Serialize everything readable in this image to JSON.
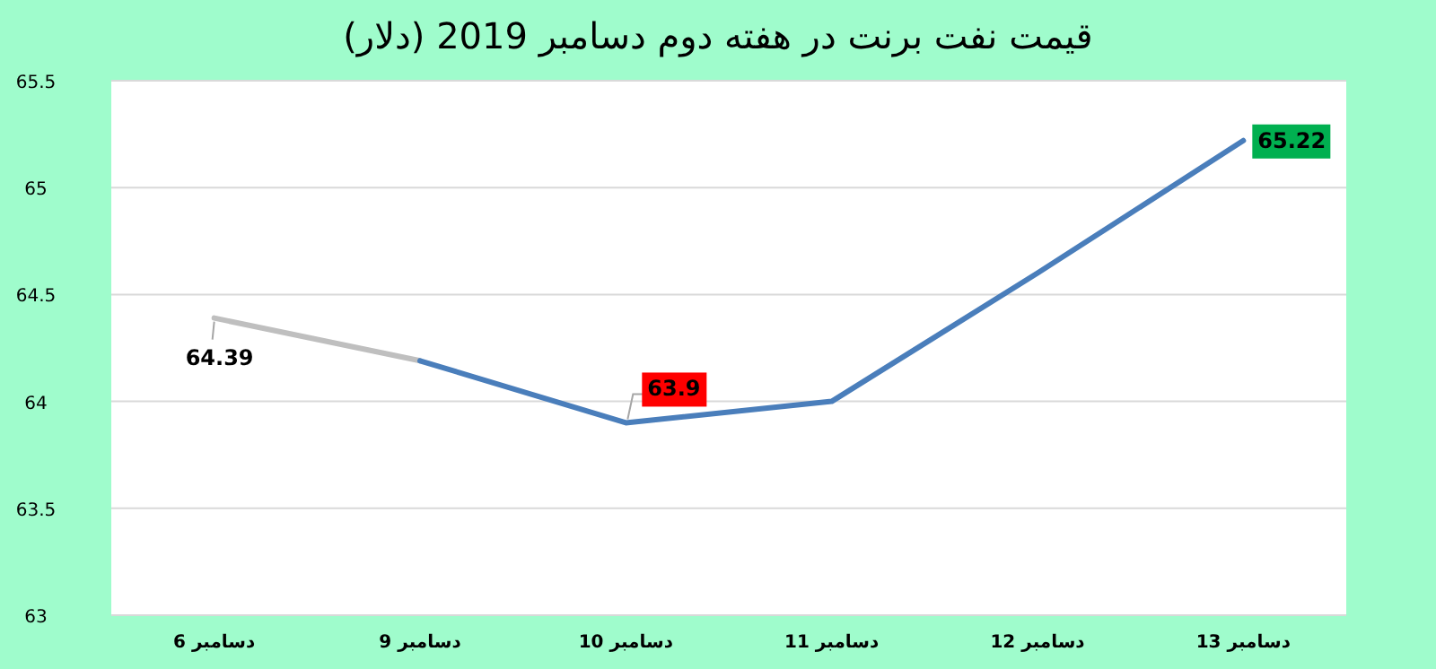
{
  "chart_data": {
    "type": "line",
    "title": "قیمت نفت برنت در هفته دوم دسامبر 2019 (دلار)",
    "categories": [
      "6 دسامبر",
      "9 دسامبر",
      "10 دسامبر",
      "11 دسامبر",
      "12 دسامبر",
      "13 دسامبر"
    ],
    "series": [
      {
        "color": "#bfbfbf",
        "values": [
          64.39,
          64.19,
          null,
          null,
          null,
          null
        ],
        "value_labels": [
          "64.39",
          null,
          null,
          null,
          null,
          null
        ]
      },
      {
        "color": "#4a7ebb",
        "values": [
          null,
          64.19,
          63.9,
          64.0,
          64.6,
          65.22
        ],
        "value_labels": [
          null,
          null,
          "63.9",
          null,
          null,
          "65.22"
        ]
      }
    ],
    "ylim": [
      63,
      65.5
    ],
    "yticks": [
      63,
      63.5,
      64,
      64.5,
      65,
      65.5
    ],
    "grid": "y",
    "marker": "none",
    "line_style": "solid"
  }
}
